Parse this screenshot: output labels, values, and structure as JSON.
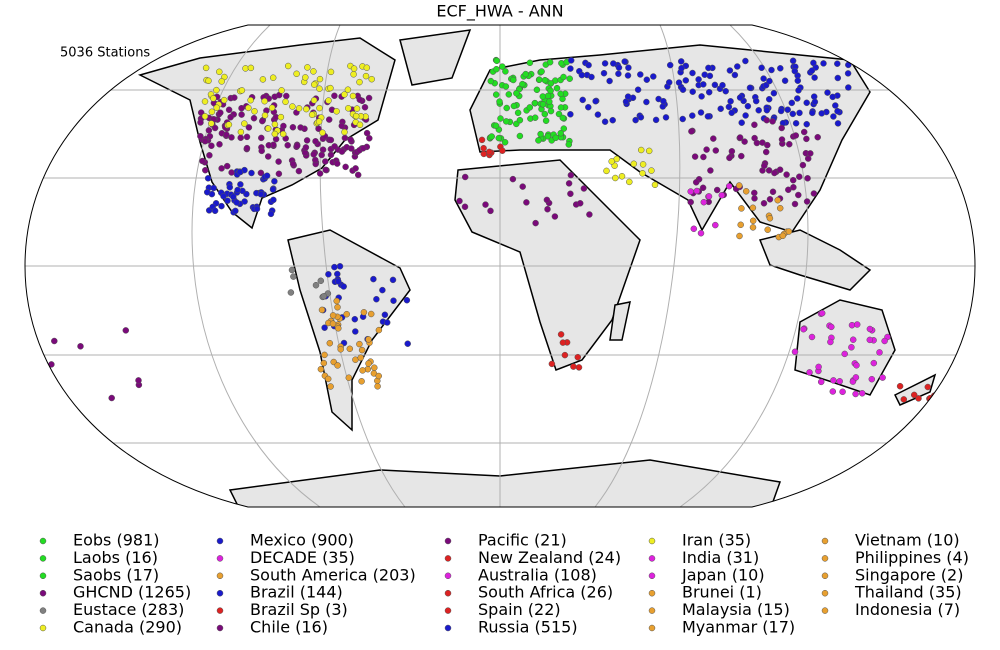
{
  "title": "ECF_HWA - ANN",
  "annotation": "5036 Stations",
  "legend": [
    {
      "label": "Eobs (981)",
      "color": "#22dd22"
    },
    {
      "label": "Laobs (16)",
      "color": "#22dd22"
    },
    {
      "label": "Saobs (17)",
      "color": "#22dd22"
    },
    {
      "label": "GHCND (1265)",
      "color": "#7a0a7a"
    },
    {
      "label": "Eustace (283)",
      "color": "#808080"
    },
    {
      "label": "Canada (290)",
      "color": "#eeee22"
    },
    {
      "label": "Mexico (900)",
      "color": "#1a1acc"
    },
    {
      "label": "DECADE (35)",
      "color": "#dd22dd"
    },
    {
      "label": "South America (203)",
      "color": "#e8a030"
    },
    {
      "label": "Brazil (144)",
      "color": "#1a1acc"
    },
    {
      "label": "Brazil Sp (3)",
      "color": "#dd2222"
    },
    {
      "label": "Chile (16)",
      "color": "#7a0a7a"
    },
    {
      "label": "Pacific (21)",
      "color": "#7a0a7a"
    },
    {
      "label": "New Zealand (24)",
      "color": "#dd2222"
    },
    {
      "label": "Australia (108)",
      "color": "#dd22dd"
    },
    {
      "label": "South Africa (26)",
      "color": "#dd2222"
    },
    {
      "label": "Spain (22)",
      "color": "#dd2222"
    },
    {
      "label": "Russia (515)",
      "color": "#1a1acc"
    },
    {
      "label": "Iran (35)",
      "color": "#eeee22"
    },
    {
      "label": "India (31)",
      "color": "#dd22dd"
    },
    {
      "label": "Japan (10)",
      "color": "#dd22dd"
    },
    {
      "label": "Brunei (1)",
      "color": "#e8a030"
    },
    {
      "label": "Malaysia (15)",
      "color": "#e8a030"
    },
    {
      "label": "Myanmar (17)",
      "color": "#e8a030"
    },
    {
      "label": "Vietnam (10)",
      "color": "#e8a030"
    },
    {
      "label": "Philippines (4)",
      "color": "#e8a030"
    },
    {
      "label": "Singapore (2)",
      "color": "#e8a030"
    },
    {
      "label": "Thailand (35)",
      "color": "#e8a030"
    },
    {
      "label": "Indonesia (7)",
      "color": "#e8a030"
    }
  ]
}
